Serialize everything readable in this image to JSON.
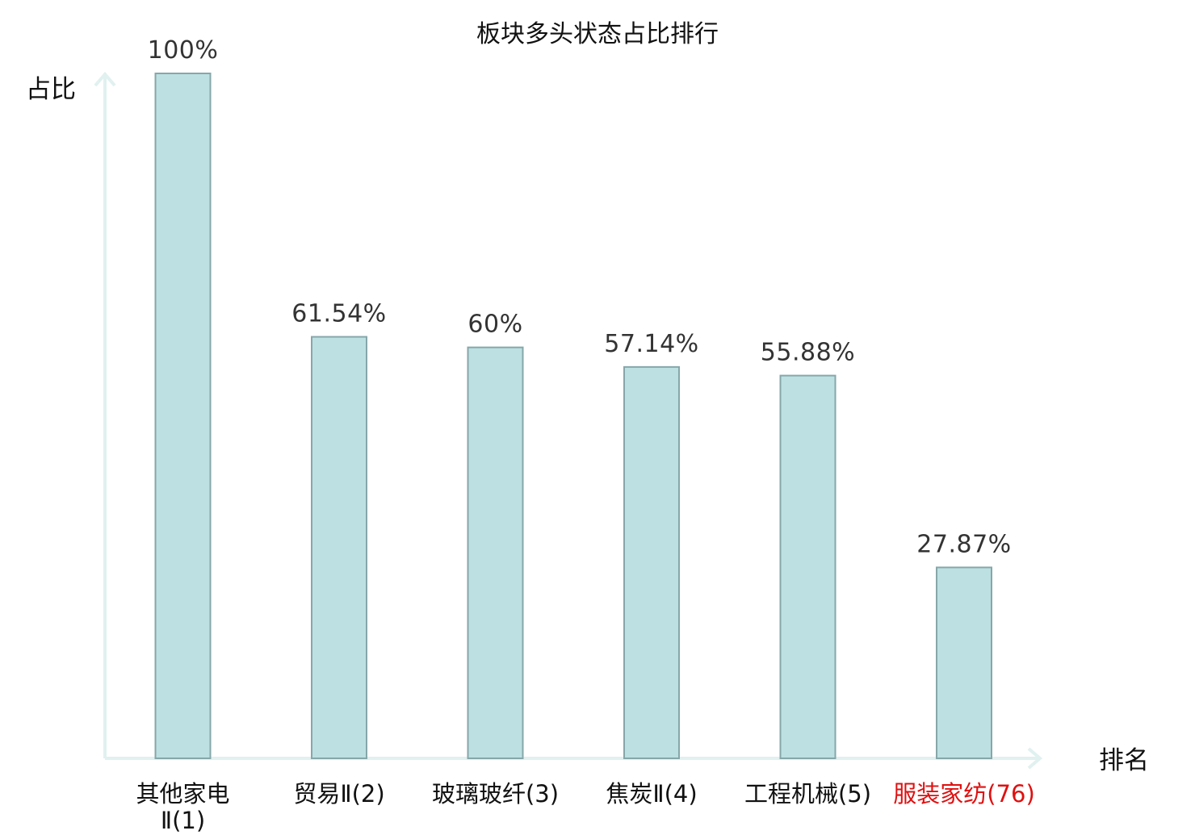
{
  "chart_data": {
    "type": "bar",
    "title": "板块多头状态占比排行",
    "xlabel": "排名",
    "ylabel": "占比",
    "ylim": [
      0,
      100
    ],
    "grid": false,
    "categories": [
      {
        "lines": [
          "其他家电",
          "Ⅱ(1)"
        ],
        "highlight": false
      },
      {
        "lines": [
          "贸易Ⅱ(2)"
        ],
        "highlight": false
      },
      {
        "lines": [
          "玻璃玻纤(3)"
        ],
        "highlight": false
      },
      {
        "lines": [
          "焦炭Ⅱ(4)"
        ],
        "highlight": false
      },
      {
        "lines": [
          "工程机械(5)"
        ],
        "highlight": false
      },
      {
        "lines": [
          "服装家纺(76)"
        ],
        "highlight": true
      }
    ],
    "values": [
      100,
      61.54,
      60,
      57.14,
      55.88,
      27.87
    ],
    "value_labels": [
      "100%",
      "61.54%",
      "60%",
      "57.14%",
      "55.88%",
      "27.87%"
    ],
    "colors": {
      "bar_fill": "#bde0e3",
      "bar_stroke": "#86a7aa",
      "axis": "#e0f1ef",
      "highlight_text": "#e01010"
    }
  }
}
